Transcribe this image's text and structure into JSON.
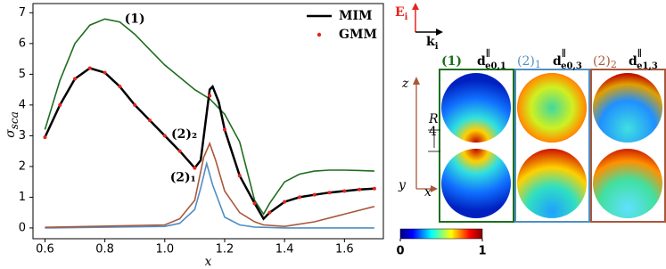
{
  "chart_data": {
    "type": "line",
    "x_label": "x",
    "y_label": "σ",
    "y_label_sub": "sca",
    "xlim": [
      0.56,
      1.73
    ],
    "ylim": [
      -0.35,
      7.3
    ],
    "xticks": [
      {
        "value": 0.6,
        "label": "0.6"
      },
      {
        "value": 0.8,
        "label": "0.8"
      },
      {
        "value": 1.0,
        "label": "1.0"
      },
      {
        "value": 1.2,
        "label": "1.2"
      },
      {
        "value": 1.4,
        "label": "1.4"
      },
      {
        "value": 1.6,
        "label": "1.6"
      }
    ],
    "yticks": [
      0,
      1,
      2,
      3,
      4,
      5,
      6,
      7
    ],
    "series": [
      {
        "name": "(1)",
        "color": "#1e6e1e",
        "style": "line",
        "legend": false,
        "x": [
          0.6,
          0.65,
          0.7,
          0.75,
          0.8,
          0.85,
          0.9,
          0.95,
          1.0,
          1.05,
          1.1,
          1.15,
          1.2,
          1.25,
          1.3,
          1.33,
          1.35,
          1.4,
          1.45,
          1.5,
          1.55,
          1.6,
          1.65,
          1.7
        ],
        "values": [
          3.2,
          4.8,
          6.0,
          6.6,
          6.8,
          6.7,
          6.3,
          5.8,
          5.3,
          4.9,
          4.5,
          4.2,
          3.7,
          2.8,
          0.9,
          0.45,
          0.8,
          1.5,
          1.75,
          1.85,
          1.88,
          1.88,
          1.87,
          1.85
        ]
      },
      {
        "name": "(2)₁",
        "color": "#4f8ec4",
        "style": "line",
        "legend": false,
        "x": [
          0.6,
          1.0,
          1.05,
          1.1,
          1.12,
          1.14,
          1.16,
          1.2,
          1.25,
          1.3,
          1.4,
          1.7
        ],
        "values": [
          0,
          0.05,
          0.15,
          0.6,
          1.3,
          2.1,
          1.4,
          0.35,
          0.1,
          0.03,
          0,
          0
        ]
      },
      {
        "name": "(2)₂",
        "color": "#a9583a",
        "style": "line",
        "legend": false,
        "x": [
          0.6,
          1.0,
          1.05,
          1.1,
          1.13,
          1.15,
          1.17,
          1.2,
          1.25,
          1.3,
          1.33,
          1.4,
          1.5,
          1.6,
          1.7
        ],
        "values": [
          0.02,
          0.1,
          0.3,
          0.9,
          2.3,
          2.75,
          2.2,
          1.2,
          0.5,
          0.2,
          0.1,
          0.05,
          0.2,
          0.45,
          0.7
        ]
      },
      {
        "name": "MIM",
        "color": "#000000",
        "style": "line",
        "legend": true,
        "x": [
          0.6,
          0.65,
          0.7,
          0.75,
          0.8,
          0.85,
          0.9,
          0.95,
          1.0,
          1.05,
          1.1,
          1.12,
          1.15,
          1.16,
          1.18,
          1.2,
          1.25,
          1.3,
          1.33,
          1.35,
          1.4,
          1.45,
          1.5,
          1.55,
          1.6,
          1.65,
          1.7
        ],
        "values": [
          2.95,
          4.0,
          4.85,
          5.2,
          5.05,
          4.6,
          4.0,
          3.5,
          3.0,
          2.5,
          1.95,
          2.2,
          4.5,
          4.6,
          4.1,
          3.2,
          1.7,
          0.8,
          0.3,
          0.5,
          0.85,
          1.0,
          1.08,
          1.15,
          1.2,
          1.25,
          1.28
        ]
      },
      {
        "name": "GMM",
        "color": "#e8231f",
        "style": "markers",
        "legend": true,
        "x": [
          0.6,
          0.65,
          0.7,
          0.75,
          0.8,
          0.85,
          0.9,
          0.95,
          1.0,
          1.05,
          1.1,
          1.15,
          1.2,
          1.25,
          1.3,
          1.35,
          1.4,
          1.45,
          1.5,
          1.55,
          1.6,
          1.65,
          1.7
        ],
        "values": [
          2.95,
          4.0,
          4.85,
          5.2,
          5.05,
          4.6,
          4.0,
          3.5,
          3.0,
          2.5,
          1.95,
          4.3,
          3.2,
          1.7,
          0.8,
          0.5,
          0.85,
          1.0,
          1.08,
          1.15,
          1.2,
          1.25,
          1.28
        ]
      }
    ]
  },
  "field_panel": {
    "incident": {
      "E": "E",
      "E_sub": "i",
      "k": "k",
      "k_sub": "i"
    },
    "axes": {
      "z": "z",
      "y": "y",
      "x": "x",
      "radius_num": "R",
      "radius_den": "4"
    },
    "panels": [
      {
        "mode": "(1)",
        "mode_sub": "",
        "dipole": "d",
        "dipole_sup": "∥",
        "dipole_sub": "e0,1"
      },
      {
        "mode": "(2)",
        "mode_sub": "1",
        "dipole": "d",
        "dipole_sup": "∥",
        "dipole_sub": "e0,3"
      },
      {
        "mode": "(2)",
        "mode_sub": "2",
        "dipole": "d",
        "dipole_sup": "∥",
        "dipole_sub": "e1,3"
      }
    ],
    "colorbar": {
      "ticks": [
        0,
        1
      ]
    }
  }
}
